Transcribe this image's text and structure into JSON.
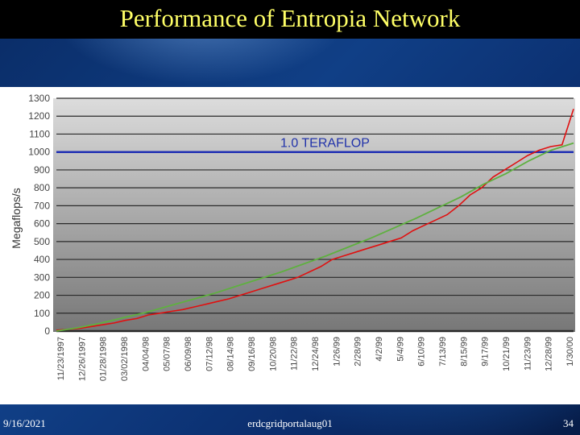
{
  "slide": {
    "title": "Performance of Entropia Network",
    "footer_date": "9/16/2021",
    "footer_center": "erdcgridportalaug01",
    "page_number": "34"
  },
  "chart_data": {
    "type": "line",
    "ylabel": "Megaflops/s",
    "ylim": [
      0,
      1300
    ],
    "yticks": [
      0,
      100,
      200,
      300,
      400,
      500,
      600,
      700,
      800,
      900,
      1000,
      1100,
      1200,
      1300
    ],
    "xticks": [
      "11/23/1997",
      "12/26/1997",
      "01/28/1998",
      "03/02/1998",
      "04/04/98",
      "05/07/98",
      "06/09/98",
      "07/12/98",
      "08/14/98",
      "09/16/98",
      "10/20/98",
      "11/22/98",
      "12/24/98",
      "1/26/99",
      "2/28/99",
      "4/2/99",
      "5/4/99",
      "6/10/99",
      "7/13/99",
      "8/15/99",
      "9/17/99",
      "10/21/99",
      "11/23/99",
      "12/28/99",
      "1/30/00"
    ],
    "grid": true,
    "reference_line": {
      "value": 1000,
      "label": "1.0 TERAFLOP",
      "color": "#1f2fb3"
    },
    "series": [
      {
        "color": "#e01010",
        "values": [
          5,
          10,
          15,
          25,
          35,
          45,
          60,
          70,
          90,
          100,
          110,
          120,
          135,
          150,
          165,
          180,
          200,
          220,
          240,
          260,
          280,
          300,
          330,
          360,
          400,
          420,
          440,
          460,
          480,
          500,
          520,
          560,
          590,
          620,
          650,
          700,
          760,
          800,
          860,
          900,
          940,
          980,
          1010,
          1030,
          1040,
          1240
        ]
      },
      {
        "color": "#5fb040",
        "values": [
          0,
          20,
          45,
          75,
          105,
          140,
          175,
          210,
          250,
          290,
          330,
          375,
          420,
          470,
          520,
          575,
          630,
          690,
          750,
          820,
          880,
          950,
          1010,
          1050
        ]
      }
    ]
  }
}
